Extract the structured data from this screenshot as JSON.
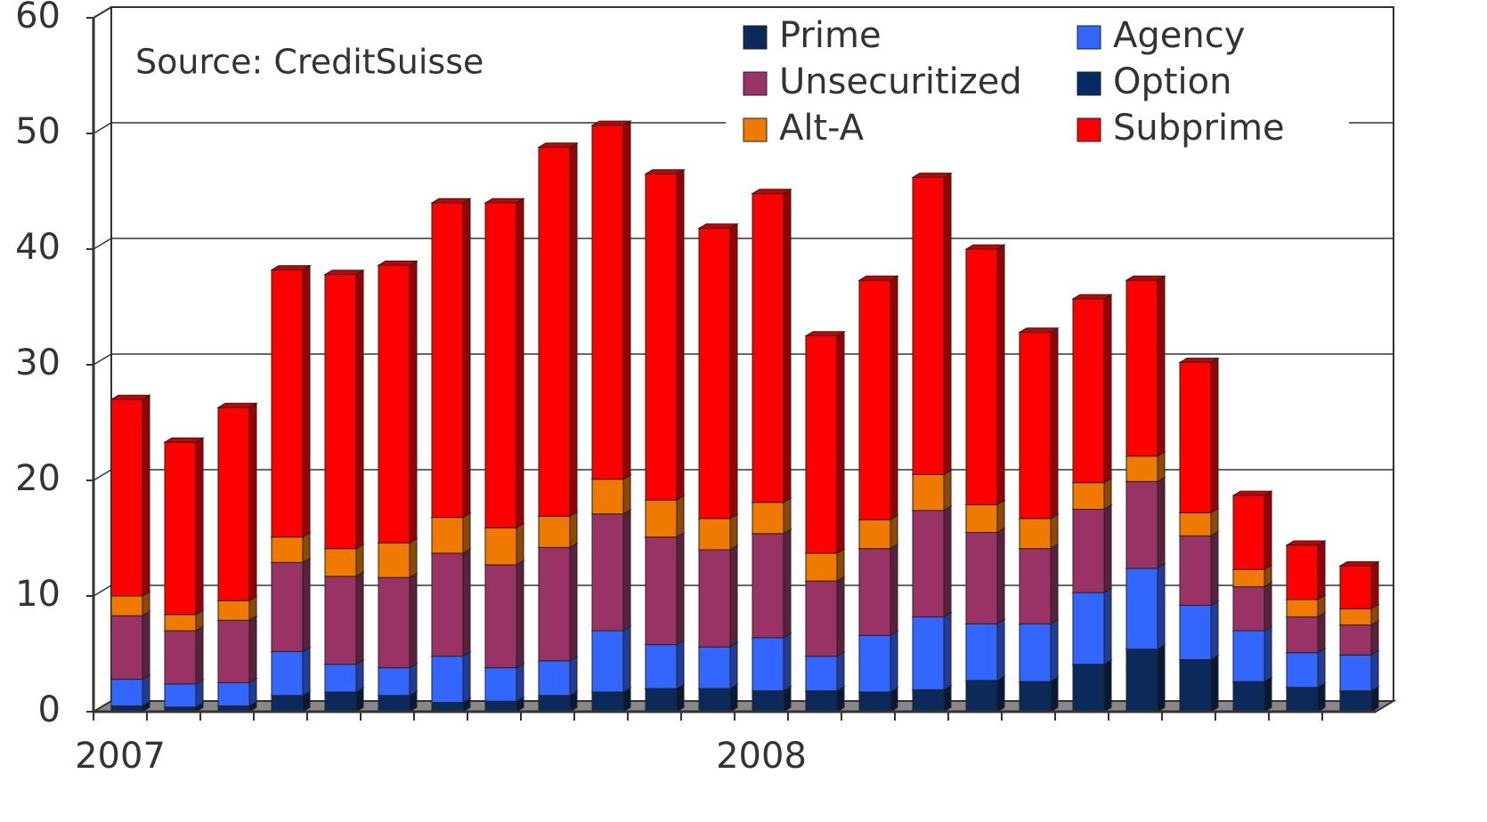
{
  "chart_data": {
    "type": "bar",
    "stacked": true,
    "annotation": "Source:  CreditSuisse",
    "categories": [
      "2007",
      null,
      null,
      null,
      null,
      null,
      null,
      null,
      null,
      null,
      null,
      null,
      "2008",
      null,
      null,
      null,
      null,
      null,
      null,
      null,
      null,
      null,
      null,
      null
    ],
    "series": [
      {
        "name": "Prime",
        "color": "#0b2a5a",
        "values": [
          0.5,
          0.4,
          0.5,
          1.4,
          1.7,
          1.4,
          0.8,
          0.9,
          1.4,
          1.7,
          2.0,
          2.0,
          1.8,
          1.8,
          1.7,
          1.9,
          2.7,
          2.6,
          4.1,
          5.4,
          4.5,
          2.6,
          2.1,
          1.8
        ]
      },
      {
        "name": "Option",
        "color": "#002b63",
        "values": [
          0,
          0,
          0,
          0,
          0,
          0,
          0,
          0,
          0,
          0,
          0,
          0,
          0,
          0,
          0,
          0,
          0,
          0,
          0,
          0,
          0,
          0,
          0,
          0
        ]
      },
      {
        "name": "Agency",
        "color": "#3366ff",
        "values": [
          2.3,
          2.0,
          2.0,
          3.8,
          2.4,
          2.4,
          4.0,
          2.9,
          3.0,
          5.3,
          3.8,
          3.6,
          4.6,
          3.0,
          4.9,
          6.3,
          4.9,
          5.0,
          6.2,
          7.0,
          4.7,
          4.4,
          3.0,
          3.1
        ]
      },
      {
        "name": "Unsecuritized",
        "color": "#993366",
        "values": [
          5.5,
          4.6,
          5.4,
          7.7,
          7.6,
          7.8,
          8.9,
          8.9,
          9.8,
          10.1,
          9.3,
          8.4,
          9.0,
          6.5,
          7.5,
          9.2,
          7.9,
          6.5,
          7.2,
          7.5,
          6.0,
          3.8,
          3.1,
          2.6
        ]
      },
      {
        "name": "Alt-A",
        "color": "#f07a00",
        "values": [
          1.7,
          1.4,
          1.7,
          2.2,
          2.4,
          3.0,
          3.1,
          3.2,
          2.7,
          3.0,
          3.2,
          2.7,
          2.7,
          2.4,
          2.5,
          3.1,
          2.4,
          2.6,
          2.3,
          2.2,
          2.0,
          1.5,
          1.5,
          1.4
        ]
      },
      {
        "name": "Subprime",
        "color": "#ff0000",
        "values": [
          17.0,
          14.9,
          16.7,
          23.1,
          23.7,
          24.0,
          27.2,
          28.1,
          31.9,
          30.6,
          28.2,
          25.1,
          26.7,
          18.8,
          20.7,
          25.7,
          22.1,
          16.1,
          15.9,
          15.2,
          13.0,
          6.4,
          4.7,
          3.7
        ]
      }
    ],
    "ylim": [
      0,
      60
    ],
    "yticks": [
      0,
      10,
      20,
      30,
      40,
      50,
      60
    ],
    "grid": true
  }
}
